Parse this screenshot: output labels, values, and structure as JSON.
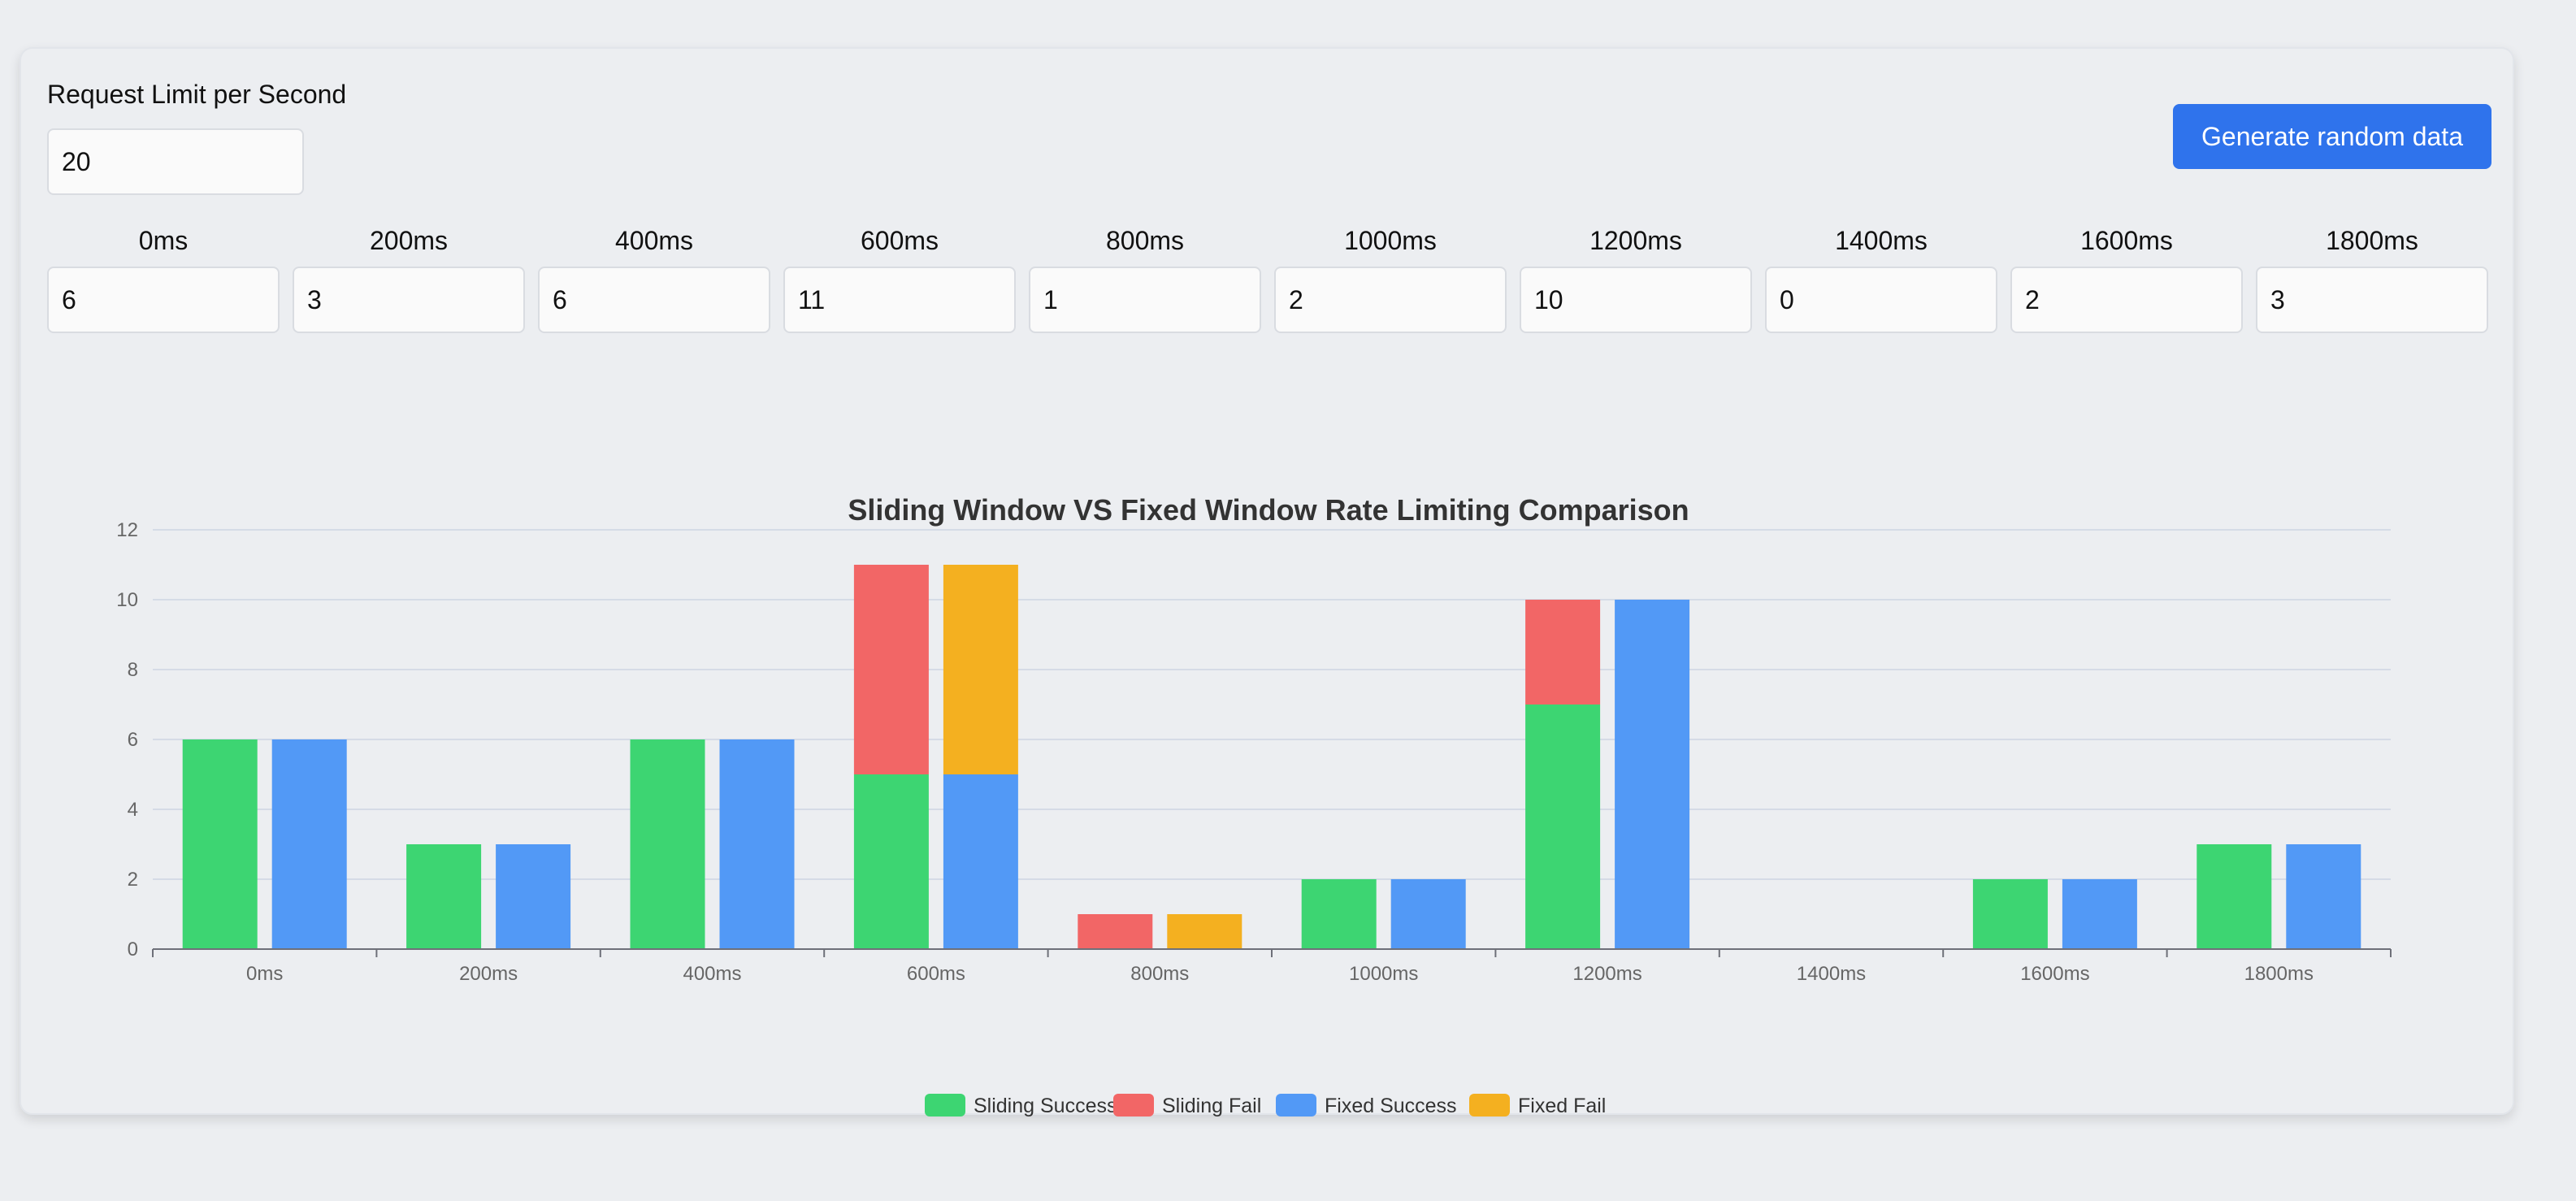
{
  "form": {
    "limit_label": "Request Limit per Second",
    "limit_value": "20",
    "generate_label": "Generate random data",
    "slots": [
      {
        "label": "0ms",
        "value": "6"
      },
      {
        "label": "200ms",
        "value": "3"
      },
      {
        "label": "400ms",
        "value": "6"
      },
      {
        "label": "600ms",
        "value": "11"
      },
      {
        "label": "800ms",
        "value": "1"
      },
      {
        "label": "1000ms",
        "value": "2"
      },
      {
        "label": "1200ms",
        "value": "10"
      },
      {
        "label": "1400ms",
        "value": "0"
      },
      {
        "label": "1600ms",
        "value": "2"
      },
      {
        "label": "1800ms",
        "value": "3"
      }
    ]
  },
  "colors": {
    "sliding_success": "#3dd572",
    "sliding_fail": "#f26666",
    "fixed_success": "#5299f6",
    "fixed_fail": "#f4b020",
    "primary_button": "#2f73ec"
  },
  "chart_data": {
    "type": "bar",
    "stacked": true,
    "title": "Sliding Window VS Fixed Window Rate Limiting Comparison",
    "categories": [
      "0ms",
      "200ms",
      "400ms",
      "600ms",
      "800ms",
      "1000ms",
      "1200ms",
      "1400ms",
      "1600ms",
      "1800ms"
    ],
    "ylim": [
      0,
      12
    ],
    "yticks": [
      0,
      2,
      4,
      6,
      8,
      10,
      12
    ],
    "grid": true,
    "legend_position": "bottom-center",
    "series": [
      {
        "name": "Sliding Success",
        "stack": "sliding",
        "color": "#3dd572",
        "values": [
          6,
          3,
          6,
          5,
          0,
          2,
          7,
          0,
          2,
          3
        ]
      },
      {
        "name": "Sliding Fail",
        "stack": "sliding",
        "color": "#f26666",
        "values": [
          0,
          0,
          0,
          6,
          1,
          0,
          3,
          0,
          0,
          0
        ]
      },
      {
        "name": "Fixed Success",
        "stack": "fixed",
        "color": "#5299f6",
        "values": [
          6,
          3,
          6,
          5,
          0,
          2,
          10,
          0,
          2,
          3
        ]
      },
      {
        "name": "Fixed Fail",
        "stack": "fixed",
        "color": "#f4b020",
        "values": [
          0,
          0,
          0,
          6,
          1,
          0,
          0,
          0,
          0,
          0
        ]
      }
    ]
  }
}
